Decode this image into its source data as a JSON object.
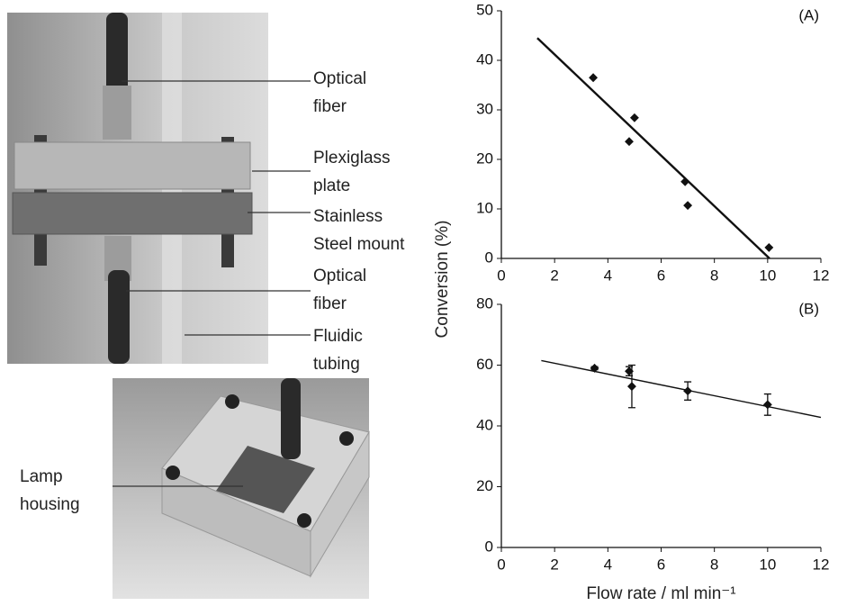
{
  "photo_labels": [
    {
      "lines": [
        "Optical",
        "fiber"
      ]
    },
    {
      "lines": [
        "Plexiglass",
        "plate"
      ]
    },
    {
      "lines": [
        "Stainless",
        "Steel mount"
      ]
    },
    {
      "lines": [
        "Optical",
        "fiber"
      ]
    },
    {
      "lines": [
        "Fluidic",
        "tubing"
      ]
    },
    {
      "lines": [
        "Lamp",
        "housing"
      ]
    }
  ],
  "chart_data": [
    {
      "type": "scatter",
      "annotation": "(A)",
      "ylabel": "Conversion (%)",
      "color": "#111111",
      "x": [
        3.45,
        4.8,
        5.0,
        6.9,
        7.0,
        10.05
      ],
      "values": [
        36.5,
        23.6,
        28.4,
        15.5,
        10.7,
        2.2
      ],
      "fit_x": [
        1.35,
        10.07
      ],
      "fit_y": [
        44.5,
        0
      ],
      "xlim": [
        0,
        12
      ],
      "xticks": [
        0,
        2,
        4,
        6,
        8,
        10,
        12
      ],
      "ylim": [
        0,
        50
      ],
      "yticks": [
        0,
        10,
        20,
        30,
        40,
        50
      ]
    },
    {
      "type": "scatter",
      "annotation": "(B)",
      "xlabel": "Flow rate / ml min⁻¹",
      "color": "#111111",
      "x": [
        3.5,
        4.8,
        4.9,
        7.0,
        10.0
      ],
      "values": [
        59,
        58,
        53,
        51.5,
        47
      ],
      "errors": [
        0.5,
        1.5,
        7,
        3,
        3.5
      ],
      "fit_x": [
        1.5,
        12
      ],
      "fit_y": [
        61.5,
        42.8
      ],
      "xlim": [
        0,
        12
      ],
      "xticks": [
        0,
        2,
        4,
        6,
        8,
        10,
        12
      ],
      "ylim": [
        0,
        80
      ],
      "yticks": [
        0,
        20,
        40,
        60,
        80
      ]
    }
  ]
}
